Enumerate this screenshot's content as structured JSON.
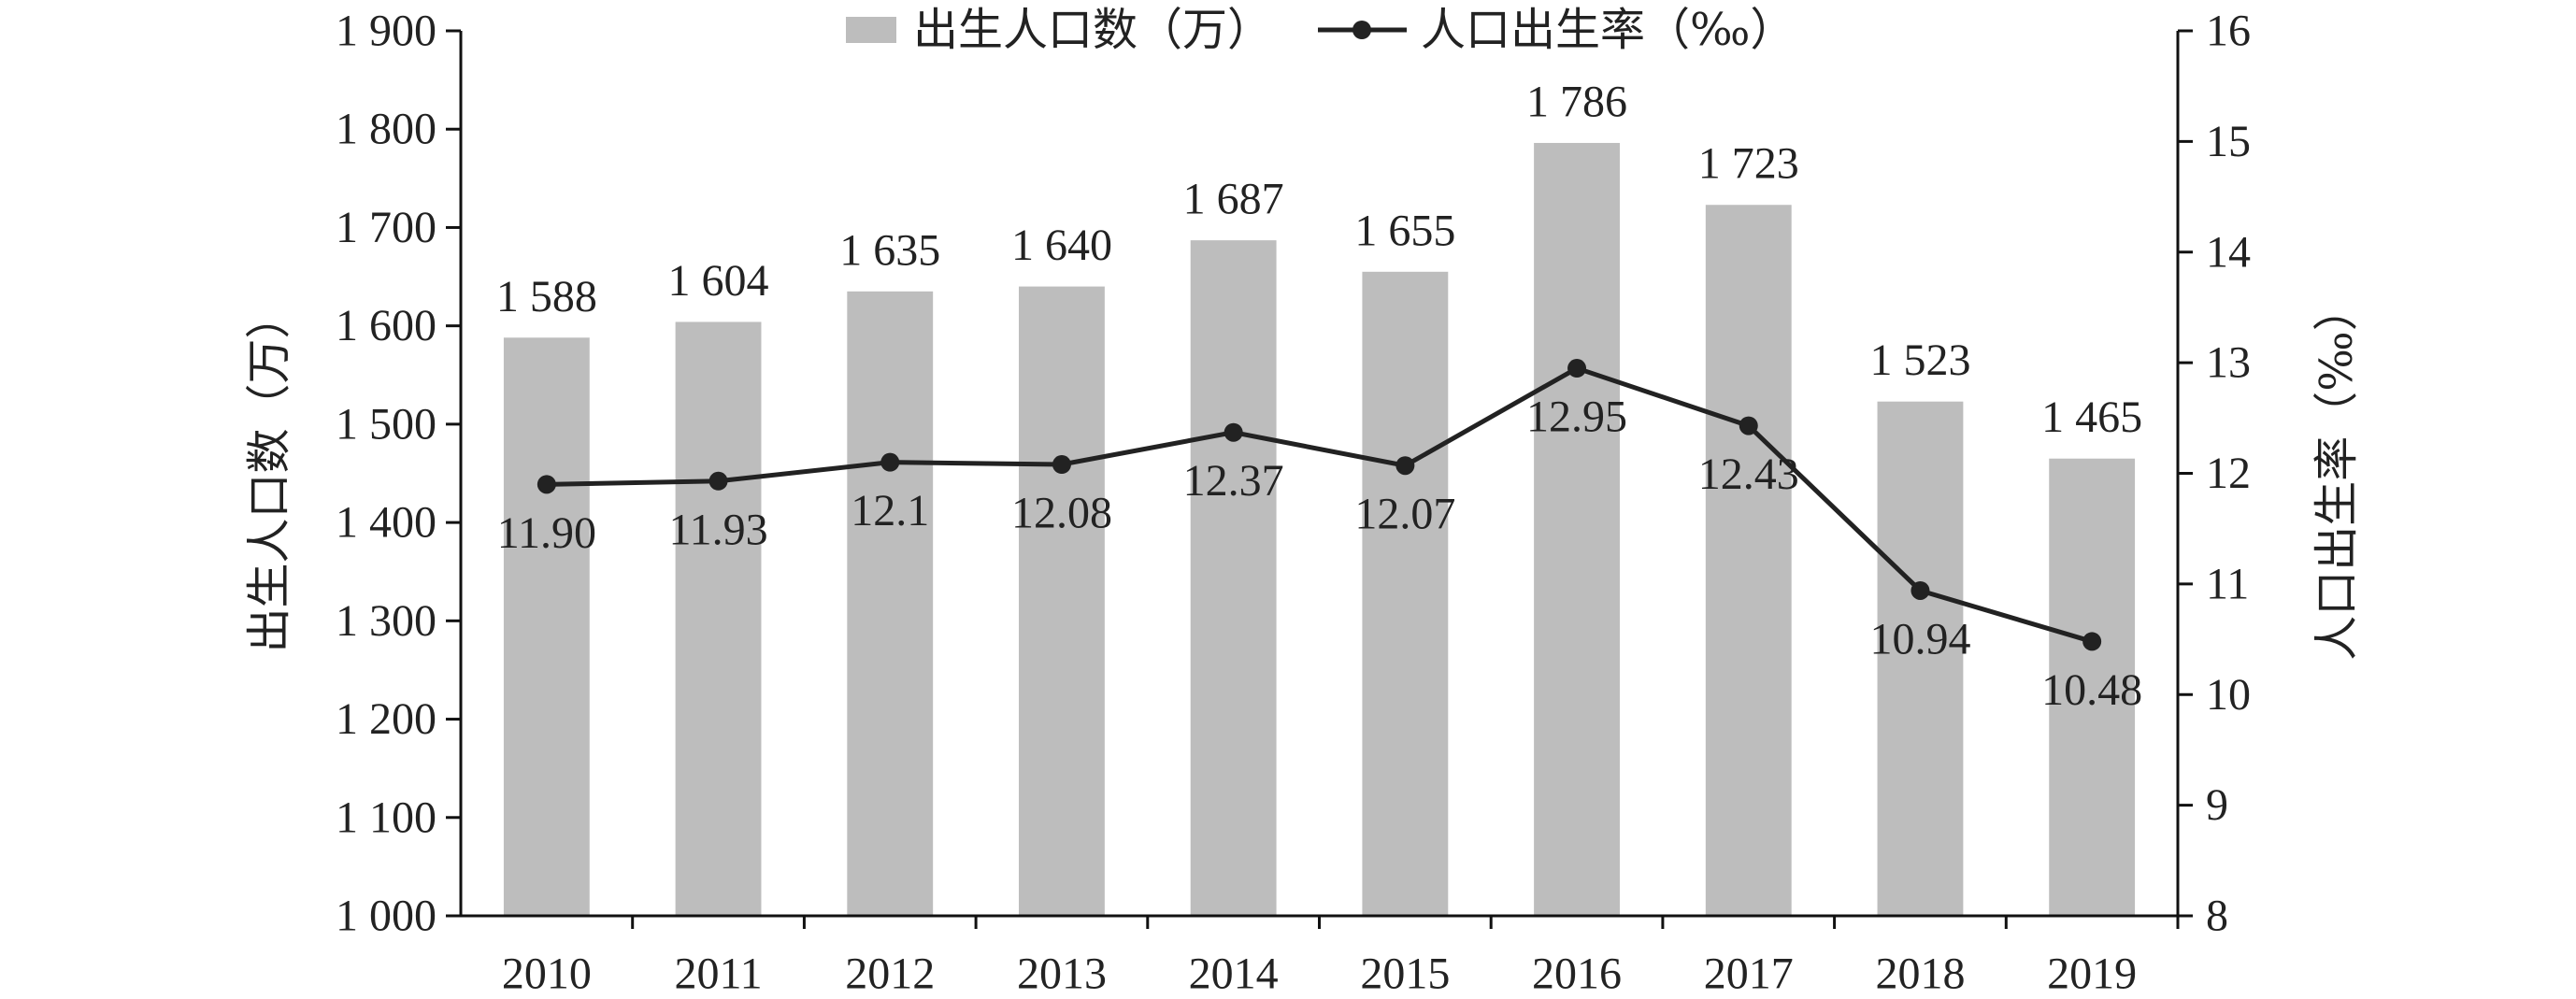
{
  "chart_data": {
    "type": "bar",
    "categories": [
      "2010",
      "2011",
      "2012",
      "2013",
      "2014",
      "2015",
      "2016",
      "2017",
      "2018",
      "2019"
    ],
    "series": [
      {
        "name": "出生人口数（万）",
        "type": "bar",
        "axis": "left",
        "values": [
          1588,
          1604,
          1635,
          1640,
          1687,
          1655,
          1786,
          1723,
          1523,
          1465
        ],
        "labels": [
          "1 588",
          "1 604",
          "1 635",
          "1 640",
          "1 687",
          "1 655",
          "1 786",
          "1 723",
          "1 523",
          "1 465"
        ],
        "color": "#bdbdbd"
      },
      {
        "name": "人口出生率（‰）",
        "type": "line",
        "axis": "right",
        "values": [
          11.9,
          11.93,
          12.1,
          12.08,
          12.37,
          12.07,
          12.95,
          12.43,
          10.94,
          10.48
        ],
        "labels": [
          "11.90",
          "11.93",
          "12.1",
          "12.08",
          "12.37",
          "12.07",
          "12.95",
          "12.43",
          "10.94",
          "10.48"
        ],
        "color": "#222222"
      }
    ],
    "ylabel": "出生人口数（万）",
    "y2label": "人口出生率（‰）",
    "xlabel": "",
    "ylim": [
      1000,
      1900
    ],
    "y_ticks": [
      1000,
      1100,
      1200,
      1300,
      1400,
      1500,
      1600,
      1700,
      1800,
      1900
    ],
    "y_tick_labels": [
      "1 000",
      "1 100",
      "1 200",
      "1 300",
      "1 400",
      "1 500",
      "1 600",
      "1 700",
      "1 800",
      "1 900"
    ],
    "y2lim": [
      8,
      16
    ],
    "y2_ticks": [
      8,
      9,
      10,
      11,
      12,
      13,
      14,
      15,
      16
    ],
    "y2_tick_labels": [
      "8",
      "9",
      "10",
      "11",
      "12",
      "13",
      "14",
      "15",
      "16"
    ],
    "grid": false,
    "legend_position": "top-center"
  }
}
